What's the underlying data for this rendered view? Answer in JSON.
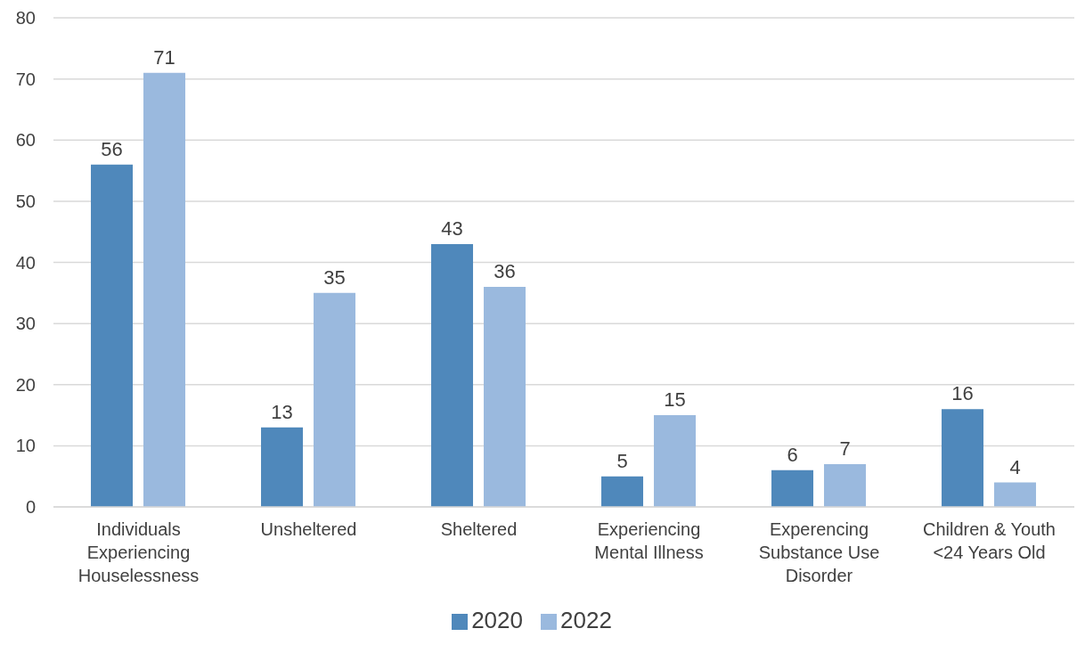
{
  "chart_data": {
    "type": "bar",
    "categories": [
      "Individuals Experiencing Houselessness",
      "Unsheltered",
      "Sheltered",
      "Experiencing Mental Illness",
      "Experencing Substance Use Disorder",
      "Children & Youth <24 Years Old"
    ],
    "series": [
      {
        "name": "2020",
        "color": "#4f88bb",
        "values": [
          56,
          13,
          43,
          5,
          6,
          16
        ]
      },
      {
        "name": "2022",
        "color": "#9ab9de",
        "values": [
          71,
          35,
          36,
          15,
          7,
          4
        ]
      }
    ],
    "ylim": [
      0,
      80
    ],
    "yticks": [
      0,
      10,
      20,
      30,
      40,
      50,
      60,
      70,
      80
    ],
    "grid": "y",
    "legend": "bottom",
    "data_labels": true
  }
}
